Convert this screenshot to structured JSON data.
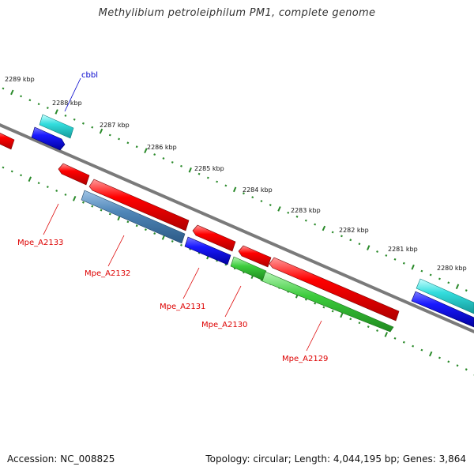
{
  "title": "Methylibium petroleiphilum PM1, complete genome",
  "footer": {
    "accession": "Accession: NC_008825",
    "topology": "Topology: circular; Length: 4,044,195 bp; Genes: 3,864"
  },
  "colors": {
    "backbone": "#7a7a7a",
    "ticks": "#2a8a2a",
    "red_gene": "#ff0000",
    "blue_gene": "#1a1aff",
    "cyan_gene": "#33dddd",
    "steel_gene": "#4f86b8",
    "green_gene": "#3ccc3c",
    "gene_label": "#dd0000",
    "cbbl_label": "#0000cc"
  },
  "kbp_labels": [
    "2289 kbp",
    "2288 kbp",
    "2287 kbp",
    "2286 kbp",
    "2285 kbp",
    "2284 kbp",
    "2283 kbp",
    "2282 kbp",
    "2281 kbp",
    "2280 kbp"
  ],
  "gene_labels": {
    "cbbl": "cbbl",
    "mpe_a2133": "Mpe_A2133",
    "mpe_a2132": "Mpe_A2132",
    "mpe_a2131": "Mpe_A2131",
    "mpe_a2130": "Mpe_A2130",
    "mpe_a2129": "Mpe_A2129"
  }
}
